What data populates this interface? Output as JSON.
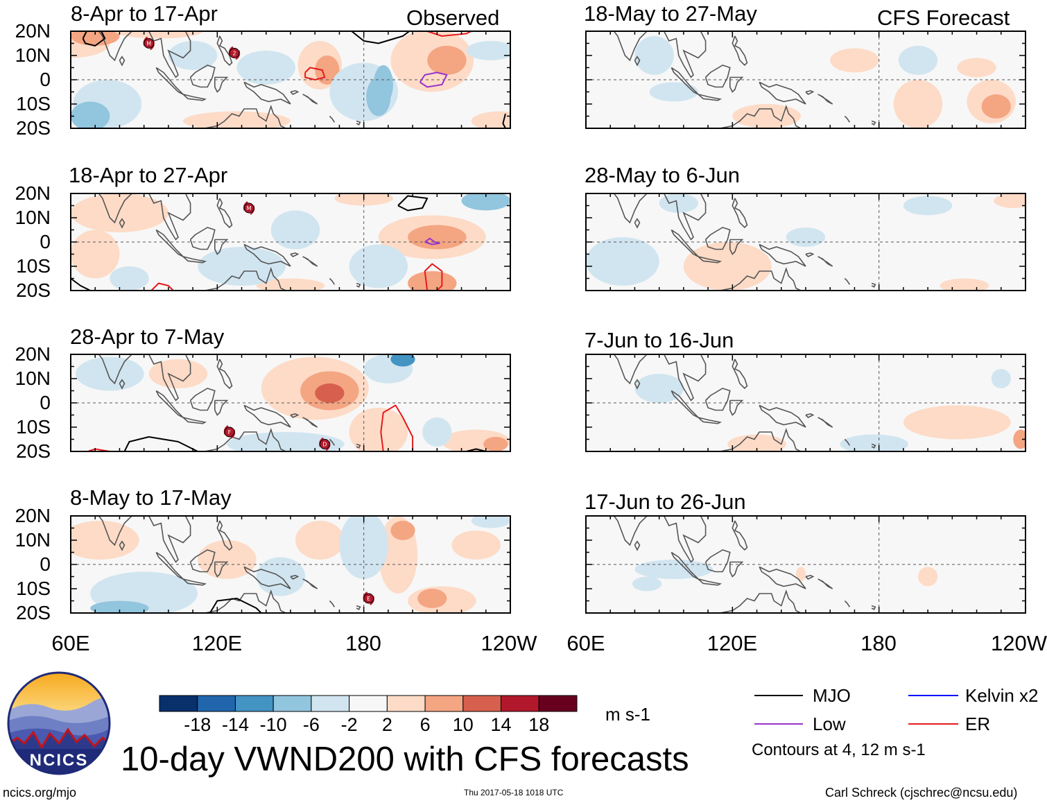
{
  "chart_data": {
    "type": "heatmap",
    "title": "10-day VWND200 with CFS forecasts",
    "variable": "VWND200",
    "units": "m s-1",
    "columns": [
      {
        "label": "Observed",
        "panels": [
          {
            "title": "8-Apr to 17-Apr"
          },
          {
            "title": "18-Apr to 27-Apr"
          },
          {
            "title": "28-Apr to 7-May"
          },
          {
            "title": "8-May to 17-May"
          }
        ]
      },
      {
        "label": "CFS Forecast",
        "panels": [
          {
            "title": "18-May to 27-May"
          },
          {
            "title": "28-May to 6-Jun"
          },
          {
            "title": "7-Jun to 16-Jun"
          },
          {
            "title": "17-Jun to 26-Jun"
          }
        ]
      }
    ],
    "lat_range": [
      -20,
      20
    ],
    "lon_range": [
      60,
      240
    ],
    "lat_ticks": [
      "20N",
      "10N",
      "0",
      "10S",
      "20S"
    ],
    "lon_ticks": [
      "60E",
      "120E",
      "180",
      "120W"
    ],
    "colorbar": {
      "ticks": [
        "-18",
        "-14",
        "-10",
        "-6",
        "-2",
        "2",
        "6",
        "10",
        "14",
        "18"
      ],
      "colors": [
        "#08306b",
        "#2166ac",
        "#4393c3",
        "#92c5de",
        "#d1e5f0",
        "#f7f7f7",
        "#fddbc7",
        "#f4a582",
        "#d6604d",
        "#b2182b",
        "#67001f"
      ]
    },
    "legend": [
      {
        "label": "MJO",
        "color": "#000000"
      },
      {
        "label": "Kelvin x2",
        "color": "#0000ff"
      },
      {
        "label": "Low",
        "color": "#9933cc"
      },
      {
        "label": "ER",
        "color": "#e41a1c"
      }
    ],
    "contour_note": "Contours at 4, 12 m s-1",
    "storm_markers": [
      {
        "panel": 0,
        "label": "M",
        "lon": 92,
        "lat": 15
      },
      {
        "panel": 0,
        "label": "2",
        "lon": 127,
        "lat": 11
      },
      {
        "panel": 1,
        "label": "M",
        "lon": 133,
        "lat": 14
      },
      {
        "panel": 2,
        "label": "F",
        "lon": 125,
        "lat": -12
      },
      {
        "panel": 2,
        "label": "D",
        "lon": 164,
        "lat": -17
      },
      {
        "panel": 3,
        "label": "E",
        "lon": 182,
        "lat": -14
      }
    ]
  },
  "footer": {
    "logo_text": "NCICS",
    "site": "ncics.org/mjo",
    "timestamp": "Thu 2017-05-18 1018 UTC",
    "author": "Carl Schreck (cjschrec@ncsu.edu)"
  }
}
